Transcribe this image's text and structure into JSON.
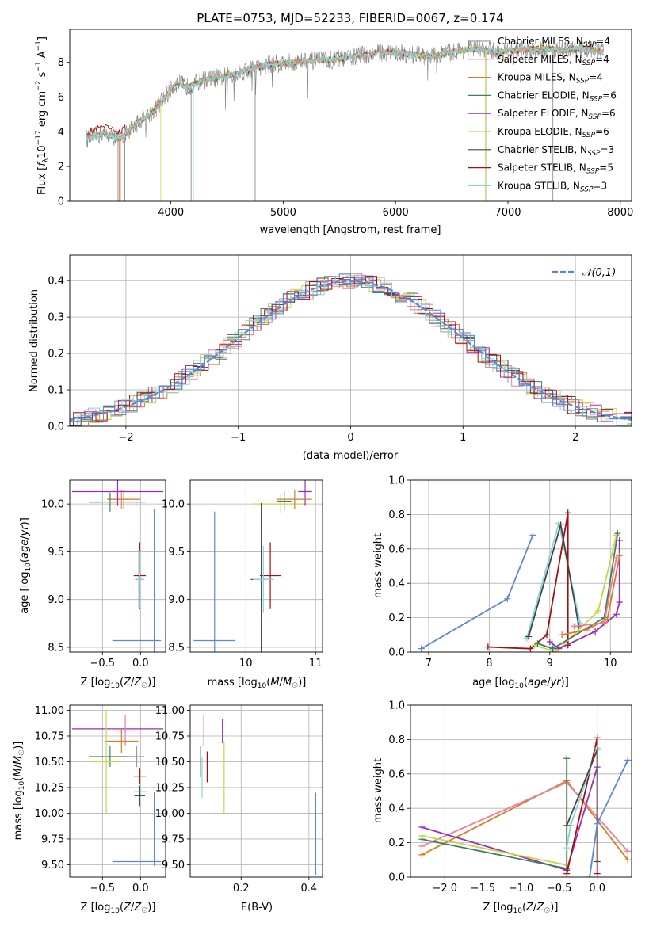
{
  "colors": {
    "chabrier_miles": "#9b9b9b",
    "salpeter_miles": "#e87f9c",
    "kroupa_miles": "#d97a27",
    "chabrier_elodie": "#3f7f61",
    "salpeter_elodie": "#9a2fb0",
    "kroupa_elodie": "#c9d44a",
    "chabrier_stelib": "#444444",
    "salpeter_stelib": "#a50f0f",
    "kroupa_stelib": "#86d3dc",
    "normal": "#5b88d6"
  },
  "chart_data": [
    {
      "id": "spectrum",
      "type": "line",
      "title": "PLATE=0753, MJD=52233, FIBERID=0067, z=0.174",
      "xlabel": "wavelength [Angstrom, rest frame]",
      "ylabel": "Flux [f_λ10^-17 erg cm^-2 s^-1 A^-1]",
      "xlim": [
        3100,
        8100
      ],
      "ylim": [
        0,
        9.9
      ],
      "xticks": [
        4000,
        5000,
        6000,
        7000,
        8000
      ],
      "yticks": [
        0,
        2,
        4,
        6,
        8
      ],
      "x": [
        3250,
        3400,
        3550,
        3700,
        3850,
        3950,
        4050,
        4150,
        4300,
        4500,
        4700,
        4900,
        5100,
        5300,
        5500,
        5700,
        5900,
        6100,
        6300,
        6500,
        6700,
        6900,
        7100,
        7300,
        7500,
        7700,
        7820
      ],
      "y": [
        3.6,
        3.9,
        3.6,
        4.5,
        5.2,
        6.0,
        6.8,
        6.6,
        7.0,
        7.2,
        7.6,
        7.9,
        8.0,
        8.1,
        8.2,
        8.4,
        8.6,
        8.5,
        8.3,
        8.6,
        8.8,
        8.6,
        8.7,
        8.8,
        8.7,
        8.8,
        8.6
      ],
      "legend": [
        {
          "label": "Chabrier MILES, N",
          "sub": "SSP",
          "tail": "=4",
          "color_key": "chabrier_miles"
        },
        {
          "label": "Salpeter MILES, N",
          "sub": "SSP",
          "tail": "=4",
          "color_key": "salpeter_miles"
        },
        {
          "label": "Kroupa MILES, N",
          "sub": "SSP",
          "tail": "=4",
          "color_key": "kroupa_miles"
        },
        {
          "label": "Chabrier ELODIE, N",
          "sub": "SSP",
          "tail": "=6",
          "color_key": "chabrier_elodie"
        },
        {
          "label": "Salpeter ELODIE, N",
          "sub": "SSP",
          "tail": "=6",
          "color_key": "salpeter_elodie"
        },
        {
          "label": "Kroupa ELODIE, N",
          "sub": "SSP",
          "tail": "=6",
          "color_key": "kroupa_elodie"
        },
        {
          "label": "Chabrier STELIB, N",
          "sub": "SSP",
          "tail": "=3",
          "color_key": "chabrier_stelib"
        },
        {
          "label": "Salpeter STELIB, N",
          "sub": "SSP",
          "tail": "=5",
          "color_key": "salpeter_stelib"
        },
        {
          "label": "Kroupa STELIB, N",
          "sub": "SSP",
          "tail": "=3",
          "color_key": "kroupa_stelib"
        }
      ],
      "legend_position": "right"
    },
    {
      "id": "residuals",
      "type": "histogram",
      "xlabel": "(data-model)/error",
      "ylabel": "Normed distribution",
      "xlim": [
        -2.5,
        2.5
      ],
      "ylim": [
        0,
        0.47
      ],
      "xticks": [
        -2,
        -1,
        0,
        1,
        2
      ],
      "yticks": [
        0.0,
        0.1,
        0.2,
        0.3,
        0.4
      ],
      "grid": true,
      "bin_width": 0.1,
      "curve": "normal(0,1)",
      "legend": "𝒩(0,1)",
      "legend_position": "top-right"
    },
    {
      "id": "age_vs_Z",
      "type": "errorbar",
      "xlabel": "Z [log10(Z/Z☉)]",
      "ylabel": "age [log10(age/yr)]",
      "xlim": [
        -0.93,
        0.33
      ],
      "ylim": [
        8.45,
        10.25
      ],
      "xticks": [
        -0.5,
        0.0
      ],
      "yticks": [
        8.5,
        9.0,
        9.5,
        10.0
      ],
      "grid": true,
      "points": [
        {
          "k": "chabrier_miles",
          "x": -0.06,
          "y": 10.02,
          "xe": 0.12,
          "ye": 0.05
        },
        {
          "k": "salpeter_miles",
          "x": -0.25,
          "y": 10.05,
          "xe": 0.15,
          "ye": 0.1
        },
        {
          "k": "kroupa_miles",
          "x": -0.22,
          "y": 10.05,
          "xe": 0.22,
          "ye": 0.1
        },
        {
          "k": "chabrier_elodie",
          "x": -0.4,
          "y": 10.02,
          "xe": 0.28,
          "ye": 0.1
        },
        {
          "k": "salpeter_elodie",
          "x": -0.3,
          "y": 10.13,
          "xe": 0.6,
          "ye": 0.15
        },
        {
          "k": "kroupa_elodie",
          "x": -0.32,
          "y": 10.02,
          "xe": 0.2,
          "ye": 0.1
        },
        {
          "k": "chabrier_stelib",
          "x": -0.02,
          "y": 9.21,
          "xe": 0.05,
          "ye": 0.3
        },
        {
          "k": "salpeter_stelib",
          "x": -0.01,
          "y": 9.25,
          "xe": 0.08,
          "ye": 0.35
        },
        {
          "k": "kroupa_stelib",
          "x": -0.01,
          "y": 9.21,
          "xe": 0.06,
          "ye": 0.3
        },
        {
          "k": "normal",
          "x": -0.05,
          "y": 8.57,
          "xe": 0.32,
          "ye": 0.0
        },
        {
          "k": "normal",
          "x": 0.18,
          "y": 9.0,
          "xe": 0.0,
          "ye": 0.95
        }
      ]
    },
    {
      "id": "age_vs_mass",
      "type": "errorbar",
      "xlabel": "mass [log10(M/M☉)]",
      "ylabel": "",
      "xlim": [
        9.2,
        11.1
      ],
      "ylim": [
        8.45,
        10.25
      ],
      "xticks": [
        10,
        11
      ],
      "yticks": [
        8.5,
        9.0,
        9.5,
        10.0
      ],
      "grid": true,
      "points": [
        {
          "k": "kroupa_elodie",
          "x": 10.5,
          "y": 10.0,
          "xe": 0.4,
          "ye": 0.1
        },
        {
          "k": "salpeter_elodie",
          "x": 10.85,
          "y": 10.13,
          "xe": 0.1,
          "ye": 0.15
        },
        {
          "k": "kroupa_miles",
          "x": 10.7,
          "y": 10.05,
          "xe": 0.25,
          "ye": 0.1
        },
        {
          "k": "chabrier_elodie",
          "x": 10.55,
          "y": 10.03,
          "xe": 0.1,
          "ye": 0.1
        },
        {
          "k": "salpeter_stelib",
          "x": 10.35,
          "y": 9.25,
          "xe": 0.15,
          "ye": 0.35
        },
        {
          "k": "chabrier_stelib",
          "x": 10.22,
          "y": 9.21,
          "xe": 0.15,
          "ye": 0.8
        },
        {
          "k": "kroupa_stelib",
          "x": 10.25,
          "y": 9.21,
          "xe": 0.15,
          "ye": 0.35
        },
        {
          "k": "normal",
          "x": 9.55,
          "y": 8.57,
          "xe": 0.3,
          "ye": 1.35
        }
      ]
    },
    {
      "id": "mass_weight_vs_age",
      "type": "line",
      "xlabel": "age [log10(age/yr)]",
      "ylabel": "mass weight",
      "xlim": [
        6.7,
        10.35
      ],
      "ylim": [
        0,
        1
      ],
      "xticks": [
        7,
        8,
        9,
        10
      ],
      "yticks": [
        0.0,
        0.2,
        0.4,
        0.6,
        0.8,
        1.0
      ],
      "grid": true,
      "series": [
        {
          "k": "normal",
          "x": [
            6.88,
            8.3,
            8.72
          ],
          "y": [
            0.02,
            0.31,
            0.68
          ]
        },
        {
          "k": "kroupa_stelib",
          "x": [
            8.62,
            9.15,
            9.5
          ],
          "y": [
            0.08,
            0.75,
            0.17
          ]
        },
        {
          "k": "chabrier_stelib",
          "x": [
            8.65,
            9.18,
            9.48
          ],
          "y": [
            0.09,
            0.74,
            0.15
          ]
        },
        {
          "k": "salpeter_stelib",
          "x": [
            7.98,
            8.68,
            8.95,
            9.3,
            9.3
          ],
          "y": [
            0.03,
            0.02,
            0.1,
            0.81,
            0.04
          ]
        },
        {
          "k": "kroupa_elodie",
          "x": [
            8.75,
            9.1,
            9.8,
            10.1
          ],
          "y": [
            0.04,
            0.0,
            0.24,
            0.68
          ]
        },
        {
          "k": "chabrier_elodie",
          "x": [
            8.8,
            9.05,
            9.9,
            10.12
          ],
          "y": [
            0.05,
            0.02,
            0.2,
            0.69
          ]
        },
        {
          "k": "salpeter_elodie",
          "x": [
            9.0,
            9.15,
            9.75,
            10.1,
            10.15,
            10.15
          ],
          "y": [
            0.06,
            0.02,
            0.12,
            0.22,
            0.29,
            0.65
          ]
        },
        {
          "k": "kroupa_miles",
          "x": [
            9.2,
            9.6,
            9.95,
            10.15
          ],
          "y": [
            0.1,
            0.13,
            0.19,
            0.56
          ]
        },
        {
          "k": "salpeter_miles",
          "x": [
            9.4,
            9.9,
            10.1
          ],
          "y": [
            0.15,
            0.17,
            0.55
          ]
        }
      ]
    },
    {
      "id": "mass_vs_Z",
      "type": "errorbar",
      "xlabel": "Z [log10(Z/Z☉)]",
      "ylabel": "mass [log10(M/M☉)]",
      "xlim": [
        -0.93,
        0.33
      ],
      "ylim": [
        9.38,
        11.05
      ],
      "xticks": [
        -0.5,
        0.0
      ],
      "yticks": [
        9.5,
        9.75,
        10.0,
        10.25,
        10.5,
        10.75,
        11.0
      ],
      "grid": true,
      "points": [
        {
          "k": "salpeter_elodie",
          "x": -0.3,
          "y": 10.82,
          "xe": 0.6,
          "ye": 0.0
        },
        {
          "k": "salpeter_miles",
          "x": -0.2,
          "y": 10.8,
          "xe": 0.15,
          "ye": 0.15
        },
        {
          "k": "kroupa_miles",
          "x": -0.25,
          "y": 10.7,
          "xe": 0.22,
          "ye": 0.12
        },
        {
          "k": "chabrier_elodie",
          "x": -0.4,
          "y": 10.55,
          "xe": 0.28,
          "ye": 0.1
        },
        {
          "k": "kroupa_elodie",
          "x": -0.45,
          "y": 10.5,
          "xe": 0.2,
          "ye": 0.5
        },
        {
          "k": "chabrier_miles",
          "x": -0.05,
          "y": 10.55,
          "xe": 0.1,
          "ye": 0.1
        },
        {
          "k": "salpeter_stelib",
          "x": -0.01,
          "y": 10.36,
          "xe": 0.08,
          "ye": 0.08
        },
        {
          "k": "kroupa_stelib",
          "x": 0.0,
          "y": 10.21,
          "xe": 0.08,
          "ye": 0.05
        },
        {
          "k": "chabrier_stelib",
          "x": -0.01,
          "y": 10.17,
          "xe": 0.07,
          "ye": 0.1
        },
        {
          "k": "normal",
          "x": -0.05,
          "y": 9.53,
          "xe": 0.32,
          "ye": 0.0
        },
        {
          "k": "normal",
          "x": 0.18,
          "y": 9.85,
          "xe": 0.0,
          "ye": 0.36
        }
      ]
    },
    {
      "id": "mass_vs_ebv",
      "type": "errorbar",
      "xlabel": "E(B-V)",
      "ylabel": "",
      "xlim": [
        0.05,
        0.44
      ],
      "ylim": [
        9.38,
        11.05
      ],
      "xticks": [
        0.2,
        0.4
      ],
      "yticks": [
        9.5,
        9.75,
        10.0,
        10.25,
        10.5,
        10.75,
        11.0
      ],
      "grid": true,
      "points": [
        {
          "k": "salpeter_miles",
          "x": 0.09,
          "y": 10.8,
          "xe": 0.0,
          "ye": 0.15
        },
        {
          "k": "chabrier_elodie",
          "x": 0.08,
          "y": 10.5,
          "xe": 0.0,
          "ye": 0.15
        },
        {
          "k": "kroupa_stelib",
          "x": 0.085,
          "y": 10.35,
          "xe": 0.0,
          "ye": 0.2
        },
        {
          "k": "salpeter_stelib",
          "x": 0.1,
          "y": 10.45,
          "xe": 0.0,
          "ye": 0.15
        },
        {
          "k": "salpeter_elodie",
          "x": 0.145,
          "y": 10.8,
          "xe": 0.0,
          "ye": 0.12
        },
        {
          "k": "kroupa_elodie",
          "x": 0.15,
          "y": 10.35,
          "xe": 0.0,
          "ye": 0.35
        },
        {
          "k": "normal",
          "x": 0.42,
          "y": 9.8,
          "xe": 0.0,
          "ye": 0.4
        }
      ]
    },
    {
      "id": "mass_weight_vs_Z",
      "type": "line",
      "xlabel": "Z [log10(Z/Z☉)]",
      "ylabel": "mass weight",
      "xlim": [
        -2.45,
        0.45
      ],
      "ylim": [
        0,
        1
      ],
      "xticks": [
        -2.0,
        -1.5,
        -1.0,
        -0.5,
        0.0
      ],
      "yticks": [
        0.0,
        0.2,
        0.4,
        0.6,
        0.8,
        1.0
      ],
      "grid": true,
      "series": [
        {
          "k": "kroupa_miles",
          "x": [
            -2.3,
            -0.4,
            0.4
          ],
          "y": [
            0.13,
            0.56,
            0.1
          ]
        },
        {
          "k": "salpeter_miles",
          "x": [
            -2.3,
            -0.4,
            0.4
          ],
          "y": [
            0.18,
            0.55,
            0.15
          ]
        },
        {
          "k": "salpeter_elodie",
          "x": [
            -2.3,
            -0.4,
            0.0
          ],
          "y": [
            0.29,
            0.04,
            0.64
          ]
        },
        {
          "k": "kroupa_elodie",
          "x": [
            -2.3,
            -0.4,
            -0.4
          ],
          "y": [
            0.24,
            0.07,
            0.69
          ]
        },
        {
          "k": "chabrier_elodie",
          "x": [
            -2.3,
            -0.4,
            -0.4
          ],
          "y": [
            0.22,
            0.05,
            0.69
          ]
        },
        {
          "k": "salpeter_stelib",
          "x": [
            -0.4,
            0.0,
            0.0
          ],
          "y": [
            0.02,
            0.81,
            0.02
          ]
        },
        {
          "k": "kroupa_stelib",
          "x": [
            -0.4,
            -0.35,
            0.0
          ],
          "y": [
            0.17,
            0.3,
            0.75
          ]
        },
        {
          "k": "chabrier_stelib",
          "x": [
            -0.4,
            0.0,
            0.0
          ],
          "y": [
            0.3,
            0.74,
            0.09
          ]
        },
        {
          "k": "normal",
          "x": [
            -0.1,
            0.0,
            0.4
          ],
          "y": [
            0.0,
            0.31,
            0.68
          ]
        }
      ]
    }
  ]
}
